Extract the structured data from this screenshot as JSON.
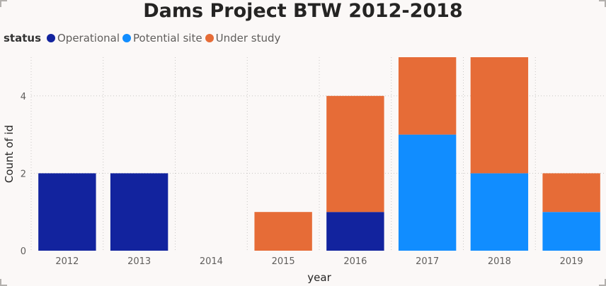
{
  "chart_data": {
    "type": "bar",
    "stacked": true,
    "title": "Dams Project BTW 2012-2018",
    "xlabel": "year",
    "ylabel": "Count of id",
    "legend_title": "status",
    "legend_position": "top-left",
    "categories": [
      "2012",
      "2013",
      "2014",
      "2015",
      "2016",
      "2017",
      "2018",
      "2019"
    ],
    "series": [
      {
        "name": "Operational",
        "color": "#12239e",
        "values": [
          2,
          2,
          0,
          0,
          1,
          0,
          0,
          0
        ]
      },
      {
        "name": "Potential site",
        "color": "#118dff",
        "values": [
          0,
          0,
          0,
          0,
          0,
          3,
          2,
          1
        ]
      },
      {
        "name": "Under study",
        "color": "#e66c37",
        "values": [
          0,
          0,
          0,
          1,
          3,
          2,
          3,
          1
        ]
      }
    ],
    "y_ticks": [
      0,
      2,
      4
    ],
    "ylim": [
      0,
      5
    ],
    "grid": true
  }
}
